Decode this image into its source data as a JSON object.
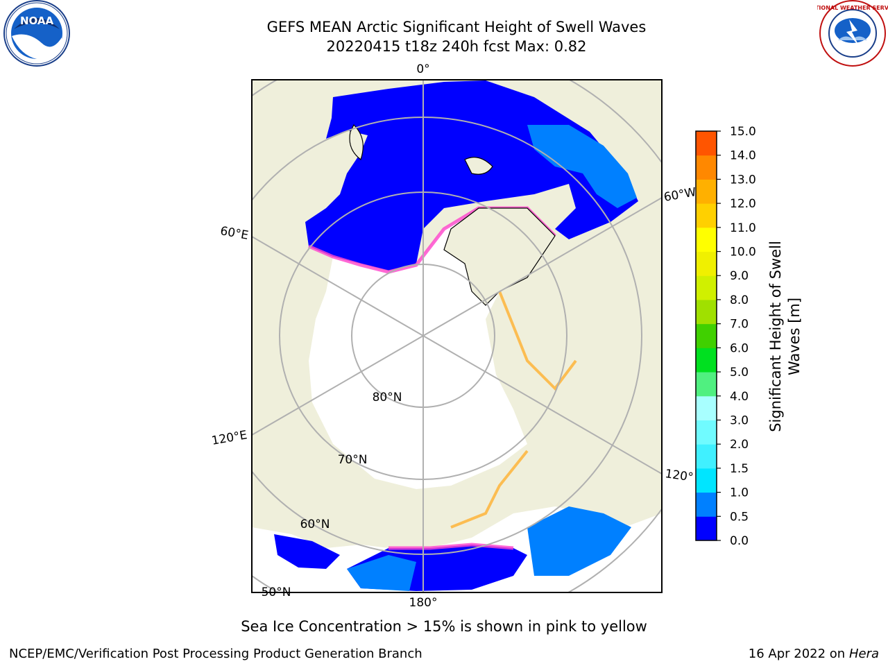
{
  "header": {
    "title_line1": "GEFS MEAN Arctic Significant Height of Swell Waves",
    "title_line2": "20220415 t18z 240h fcst   Max: 0.82"
  },
  "logos": {
    "left": "NOAA",
    "right": "NATIONAL WEATHER SERVICE"
  },
  "map": {
    "lon_labels": {
      "top": "0°",
      "right_upper": "60°W",
      "left_upper": "60°E",
      "left_lower": "120°E",
      "right_lower": "120°",
      "bottom": "180°"
    },
    "lat_labels": {
      "inner": "80°N",
      "middle": "70°N",
      "outer": "60°N",
      "corner": "50°N"
    },
    "colors": {
      "land": "#efefdb",
      "ocean_low": "#0000ff",
      "ocean_mid": "#0080ff",
      "ice": "#ffffff",
      "ice_edge_pink": "#ff44cc",
      "ice_edge_yellow": "#ffb030"
    }
  },
  "colorbar": {
    "label_line1": "Significant Height of Swell",
    "label_line2": "Waves [m]",
    "ticks": [
      "0.0",
      "0.5",
      "1.0",
      "1.5",
      "2.0",
      "3.0",
      "4.0",
      "5.0",
      "6.0",
      "7.0",
      "8.0",
      "9.0",
      "10.0",
      "11.0",
      "12.0",
      "13.0",
      "14.0",
      "15.0"
    ],
    "colors": [
      "#0000ff",
      "#0080ff",
      "#00e5ff",
      "#40f0ff",
      "#70fbff",
      "#a8ffff",
      "#50f080",
      "#00e020",
      "#40d000",
      "#a0e000",
      "#d0f000",
      "#f0f000",
      "#ffff00",
      "#ffd000",
      "#ffb000",
      "#ff8800",
      "#ff5500",
      "#ff2000",
      "#ff0000"
    ]
  },
  "footer": {
    "ice_note": "Sea Ice Concentration > 15% is shown in pink to yellow",
    "credit": "NCEP/EMC/Verification Post Processing Product Generation Branch",
    "date_prefix": "16 Apr 2022 on ",
    "host": "Hera"
  }
}
